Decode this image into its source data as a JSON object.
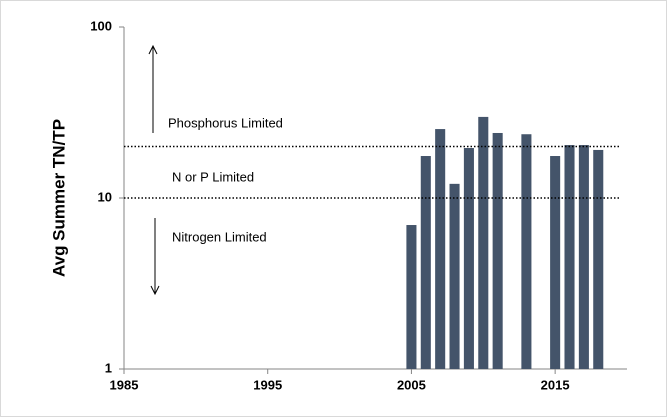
{
  "chart_data": {
    "type": "bar",
    "y_label": "Avg Summer TN/TP",
    "x": [
      2005,
      2006,
      2007,
      2008,
      2009,
      2010,
      2011,
      2013,
      2015,
      2016,
      2017,
      2018
    ],
    "values": [
      6.95,
      17.6,
      25.3,
      12.1,
      19.6,
      29.8,
      24.0,
      23.6,
      17.6,
      20.4,
      20.4,
      19.1
    ],
    "color": "#44546a",
    "xlim": [
      1985,
      2020
    ],
    "xticks": [
      1985,
      1995,
      2005,
      2015
    ],
    "ylim": [
      1,
      100
    ],
    "yticks": [
      1,
      10,
      100
    ],
    "log_y": true,
    "reference_lines": [
      20,
      10
    ],
    "annotations": [
      "Phosphorus Limited",
      "N or P Limited",
      "Nitrogen Limited"
    ]
  }
}
